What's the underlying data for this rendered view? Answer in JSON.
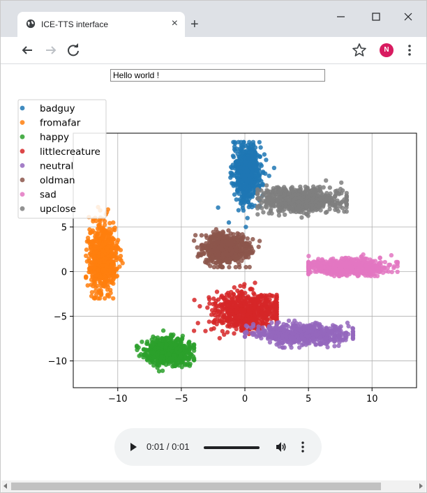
{
  "browser": {
    "tab_title": "ICE-TTS interface",
    "close_glyph": "×",
    "new_tab_glyph": "+",
    "profile_initial": "N",
    "icons": [
      "globe-icon",
      "close-icon",
      "new-tab-icon",
      "minimize-icon",
      "maximize-icon",
      "window-close-icon",
      "back-arrow-icon",
      "forward-arrow-icon",
      "reload-icon",
      "bookmark-star-icon",
      "profile-avatar",
      "kebab-menu-icon"
    ]
  },
  "page": {
    "text_input_value": "Hello world !"
  },
  "audio": {
    "time": "0:01 / 0:01",
    "progress": 1.0
  },
  "chart_data": {
    "type": "scatter",
    "title": "",
    "xlabel": "",
    "ylabel": "",
    "xlim": [
      -13.5,
      13.5
    ],
    "ylim": [
      -13,
      15.5
    ],
    "xticks": [
      -10,
      -5,
      0,
      5,
      10
    ],
    "yticks": [
      -10,
      -5,
      0,
      5
    ],
    "grid": true,
    "legend_position": "top-left",
    "series": [
      {
        "name": "badguy",
        "color": "#1f77b4",
        "center": [
          0.2,
          11.0
        ],
        "spread": [
          1.2,
          3.5
        ],
        "approx_region_x": [
          -2.5,
          2.5
        ],
        "approx_region_y": [
          5.0,
          14.5
        ]
      },
      {
        "name": "fromafar",
        "color": "#ff7f0e",
        "center": [
          -11.2,
          1.5
        ],
        "spread": [
          1.2,
          4.2
        ],
        "approx_region_x": [
          -12.5,
          -9.5
        ],
        "approx_region_y": [
          -3.0,
          8.0
        ]
      },
      {
        "name": "happy",
        "color": "#2ca02c",
        "center": [
          -6.0,
          -9.0
        ],
        "spread": [
          2.0,
          1.6
        ],
        "approx_region_x": [
          -8.5,
          -4.0
        ],
        "approx_region_y": [
          -12.0,
          -6.5
        ]
      },
      {
        "name": "littlecreature",
        "color": "#d62728",
        "center": [
          0.0,
          -4.5
        ],
        "spread": [
          3.0,
          2.5
        ],
        "approx_region_x": [
          -4.0,
          2.5
        ],
        "approx_region_y": [
          -8.0,
          -1.0
        ]
      },
      {
        "name": "neutral",
        "color": "#9467bd",
        "center": [
          4.5,
          -7.0
        ],
        "spread": [
          4.0,
          1.2
        ],
        "approx_region_x": [
          0.0,
          8.5
        ],
        "approx_region_y": [
          -8.5,
          -5.5
        ]
      },
      {
        "name": "oldman",
        "color": "#8c564b",
        "center": [
          -1.5,
          2.5
        ],
        "spread": [
          2.0,
          1.8
        ],
        "approx_region_x": [
          -4.0,
          1.5
        ],
        "approx_region_y": [
          0.5,
          5.0
        ]
      },
      {
        "name": "sad",
        "color": "#e377c2",
        "center": [
          8.0,
          0.5
        ],
        "spread": [
          3.5,
          1.0
        ],
        "approx_region_x": [
          5.0,
          12.0
        ],
        "approx_region_y": [
          -0.5,
          2.0
        ]
      },
      {
        "name": "upclose",
        "color": "#7f7f7f",
        "center": [
          4.5,
          8.0
        ],
        "spread": [
          3.5,
          1.5
        ],
        "approx_region_x": [
          1.0,
          8.0
        ],
        "approx_region_y": [
          5.5,
          10.5
        ]
      }
    ]
  }
}
